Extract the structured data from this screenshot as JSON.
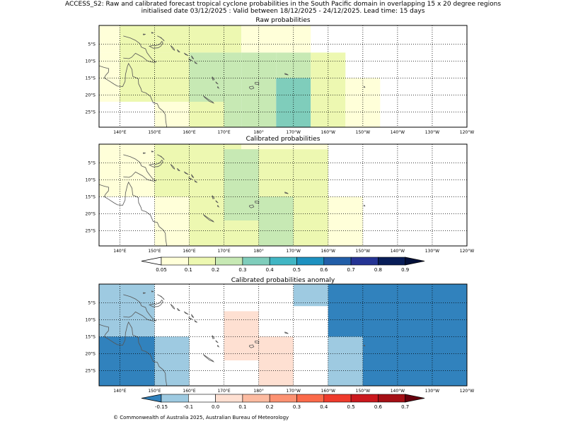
{
  "header": {
    "title_line1": "ACCESS_S2: Raw and calibrated forecast tropical cyclone probabilities in the South Pacific domain in overlapping 15 x 20 degree regions",
    "title_line2": "initialised date 03/12/2025 :  Valid between 18/12/2025 - 24/12/2025. Lead time: 15 days"
  },
  "footer": {
    "copyright": "© Commonwealth of Australia 2025, Australian Bureau of Meteorology"
  },
  "map_extent": {
    "lon_range": [
      134,
      240
    ],
    "lat_range": [
      -29.5,
      0.5
    ]
  },
  "axes": {
    "lon_ticks": [
      140,
      150,
      160,
      170,
      180,
      190,
      200,
      210,
      220,
      230,
      240
    ],
    "lon_labels": [
      "140°E",
      "150°E",
      "160°E",
      "170°E",
      "180°",
      "170°W",
      "160°W",
      "150°W",
      "140°W",
      "130°W",
      "120°W"
    ],
    "lat_ticks": [
      -5,
      -10,
      -15,
      -20,
      -25
    ],
    "lat_labels": [
      "5°S",
      "10°S",
      "15°S",
      "20°S",
      "25°S"
    ]
  },
  "colorbars": {
    "probability": {
      "labels": [
        "0.05",
        "0.1",
        "0.2",
        "0.3",
        "0.4",
        "0.5",
        "0.6",
        "0.7",
        "0.8",
        "0.9"
      ],
      "under_color": "#ffffff",
      "colors": [
        "#ffffd9",
        "#edf8b1",
        "#c7e9b4",
        "#7fcdbb",
        "#41b6c4",
        "#1d91c0",
        "#225ea8",
        "#253494",
        "#081d58"
      ],
      "over_color": "#03103a"
    },
    "anomaly": {
      "labels": [
        "-0.15",
        "-0.1",
        "0.0",
        "0.1",
        "0.2",
        "0.3",
        "0.4",
        "0.5",
        "0.6",
        "0.7"
      ],
      "under_color": "#3182bd",
      "colors": [
        "#9ecae1",
        "#ffffff",
        "#fee0d2",
        "#fcbba1",
        "#fc9272",
        "#fb6a4a",
        "#ef3b2c",
        "#cb181d",
        "#a50f15"
      ],
      "over_color": "#67000d"
    }
  },
  "panels": [
    {
      "title": "Raw probabilities",
      "cells": [
        {
          "lon": [
            134,
            140
          ],
          "lat": [
            -7.5,
            0.5
          ],
          "color": "#ffffd9"
        },
        {
          "lon": [
            140,
            175
          ],
          "lat": [
            -7.5,
            0.5
          ],
          "color": "#edf8b1"
        },
        {
          "lon": [
            175,
            195
          ],
          "lat": [
            -7.5,
            0.5
          ],
          "color": "#ffffd9"
        },
        {
          "lon": [
            134,
            140
          ],
          "lat": [
            -22,
            -7.5
          ],
          "color": "#ffffd9"
        },
        {
          "lon": [
            140,
            160
          ],
          "lat": [
            -22,
            -7.5
          ],
          "color": "#edf8b1"
        },
        {
          "lon": [
            160,
            175
          ],
          "lat": [
            -22,
            -7.5
          ],
          "color": "#c7e9b4"
        },
        {
          "lon": [
            175,
            185
          ],
          "lat": [
            -15,
            -7.5
          ],
          "color": "#c7e9b4"
        },
        {
          "lon": [
            185,
            195
          ],
          "lat": [
            -15,
            -7.5
          ],
          "color": "#c7e9b4"
        },
        {
          "lon": [
            195,
            205
          ],
          "lat": [
            -15,
            -7.5
          ],
          "color": "#edf8b1"
        },
        {
          "lon": [
            185,
            195
          ],
          "lat": [
            -29.5,
            -15
          ],
          "color": "#7fcdbb"
        },
        {
          "lon": [
            175,
            185
          ],
          "lat": [
            -29.5,
            -15
          ],
          "color": "#c7e9b4"
        },
        {
          "lon": [
            195,
            205
          ],
          "lat": [
            -29.5,
            -15
          ],
          "color": "#edf8b1"
        },
        {
          "lon": [
            205,
            215
          ],
          "lat": [
            -29.5,
            -15
          ],
          "color": "#ffffd9"
        },
        {
          "lon": [
            150,
            160
          ],
          "lat": [
            -29.5,
            -22
          ],
          "color": "#ffffd9"
        },
        {
          "lon": [
            160,
            170
          ],
          "lat": [
            -29.5,
            -22
          ],
          "color": "#edf8b1"
        },
        {
          "lon": [
            170,
            175
          ],
          "lat": [
            -29.5,
            -22
          ],
          "color": "#c7e9b4"
        }
      ]
    },
    {
      "title": "Calibrated probabilities",
      "cells": [
        {
          "lon": [
            134,
            150
          ],
          "lat": [
            -15,
            0.5
          ],
          "color": "#ffffd9"
        },
        {
          "lon": [
            150,
            175
          ],
          "lat": [
            -15,
            0.5
          ],
          "color": "#edf8b1"
        },
        {
          "lon": [
            175,
            195
          ],
          "lat": [
            -1,
            0.5
          ],
          "color": "#ffffd9"
        },
        {
          "lon": [
            175,
            185
          ],
          "lat": [
            -1,
            0.5
          ],
          "color": "#ffffd9"
        },
        {
          "lon": [
            170,
            185
          ],
          "lat": [
            -15,
            -1
          ],
          "color": "#edf8b1"
        },
        {
          "lon": [
            185,
            195
          ],
          "lat": [
            -15,
            -1
          ],
          "color": "#edf8b1"
        },
        {
          "lon": [
            195,
            205
          ],
          "lat": [
            -15,
            -1
          ],
          "color": "#ffffff"
        },
        {
          "lon": [
            134,
            150
          ],
          "lat": [
            -29.5,
            -15
          ],
          "color": "#ffffff"
        },
        {
          "lon": [
            150,
            160
          ],
          "lat": [
            -29.5,
            -15
          ],
          "color": "#ffffd9"
        },
        {
          "lon": [
            160,
            170
          ],
          "lat": [
            -29.5,
            -15
          ],
          "color": "#edf8b1"
        },
        {
          "lon": [
            170,
            180
          ],
          "lat": [
            -15,
            -1
          ],
          "color": "#c7e9b4"
        },
        {
          "lon": [
            170,
            180
          ],
          "lat": [
            -22,
            -15
          ],
          "color": "#c7e9b4"
        },
        {
          "lon": [
            170,
            180
          ],
          "lat": [
            -29.5,
            -22
          ],
          "color": "#edf8b1"
        },
        {
          "lon": [
            180,
            190
          ],
          "lat": [
            -15,
            -1
          ],
          "color": "#edf8b1"
        },
        {
          "lon": [
            180,
            190
          ],
          "lat": [
            -29.5,
            -15
          ],
          "color": "#c7e9b4"
        },
        {
          "lon": [
            190,
            200
          ],
          "lat": [
            -29.5,
            -15
          ],
          "color": "#edf8b1"
        },
        {
          "lon": [
            200,
            210
          ],
          "lat": [
            -29.5,
            -15
          ],
          "color": "#ffffd9"
        },
        {
          "lon": [
            190,
            200
          ],
          "lat": [
            -15,
            -1
          ],
          "color": "#edf8b1"
        },
        {
          "lon": [
            190,
            200
          ],
          "lat": [
            -1,
            0.5
          ],
          "color": "#ffffd9"
        }
      ]
    },
    {
      "title": "Calibrated probabilities anomaly",
      "cells": [
        {
          "lon": [
            134,
            150
          ],
          "lat": [
            -15,
            0.5
          ],
          "color": "#9ecae1"
        },
        {
          "lon": [
            134,
            150
          ],
          "lat": [
            -29.5,
            -15
          ],
          "color": "#3182bd"
        },
        {
          "lon": [
            150,
            160
          ],
          "lat": [
            -29.5,
            -15
          ],
          "color": "#9ecae1"
        },
        {
          "lon": [
            170,
            180
          ],
          "lat": [
            -22,
            -7.5
          ],
          "color": "#fee0d2"
        },
        {
          "lon": [
            180,
            190
          ],
          "lat": [
            -29.5,
            -15
          ],
          "color": "#fee0d2"
        },
        {
          "lon": [
            190,
            200
          ],
          "lat": [
            -6,
            0.5
          ],
          "color": "#9ecae1"
        },
        {
          "lon": [
            200,
            240
          ],
          "lat": [
            -29.5,
            0.5
          ],
          "color": "#3182bd"
        },
        {
          "lon": [
            200,
            210
          ],
          "lat": [
            -29.5,
            -15
          ],
          "color": "#9ecae1"
        }
      ]
    }
  ]
}
